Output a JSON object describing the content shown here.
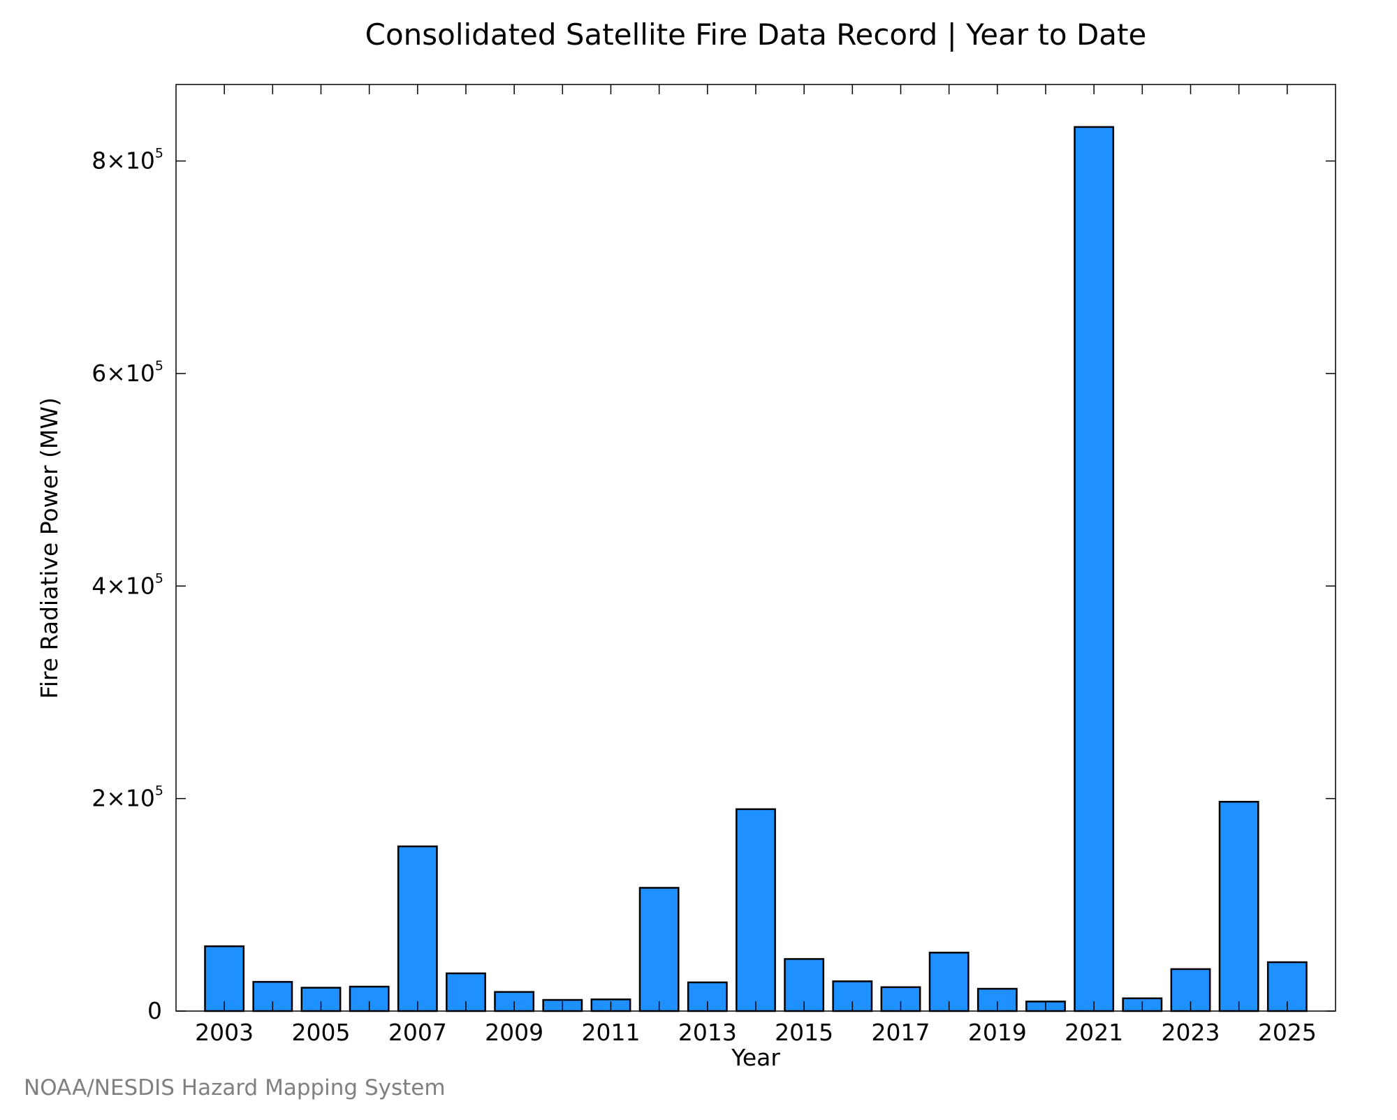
{
  "chart_data": {
    "type": "bar",
    "title": "Consolidated Satellite Fire Data Record | Year to Date",
    "xlabel": "Year",
    "ylabel": "Fire Radiative Power (MW)",
    "categories": [
      2003,
      2004,
      2005,
      2006,
      2007,
      2008,
      2009,
      2010,
      2011,
      2012,
      2013,
      2014,
      2015,
      2016,
      2017,
      2018,
      2019,
      2020,
      2021,
      2022,
      2023,
      2024,
      2025
    ],
    "values": [
      61000,
      27500,
      22000,
      23000,
      155000,
      35500,
      18000,
      10500,
      11000,
      116000,
      27000,
      190000,
      49000,
      28000,
      22500,
      55000,
      21000,
      9000,
      832000,
      12000,
      39500,
      197000,
      46000
    ],
    "ylim": [
      0,
      872000
    ],
    "xlim": [
      2002,
      2026
    ],
    "yticks": [
      {
        "value": 0,
        "mant": "0",
        "exp": ""
      },
      {
        "value": 200000,
        "mant": "2×10",
        "exp": "5"
      },
      {
        "value": 400000,
        "mant": "4×10",
        "exp": "5"
      },
      {
        "value": 600000,
        "mant": "6×10",
        "exp": "5"
      },
      {
        "value": 800000,
        "mant": "8×10",
        "exp": "5"
      }
    ],
    "xtick_labels": [
      "2003",
      "2005",
      "2007",
      "2009",
      "2011",
      "2013",
      "2015",
      "2017",
      "2019",
      "2021",
      "2023",
      "2025"
    ],
    "bar_color": "#1e90ff",
    "edge_color": "#000000",
    "grid": false
  },
  "credit": "NOAA/NESDIS Hazard Mapping System"
}
